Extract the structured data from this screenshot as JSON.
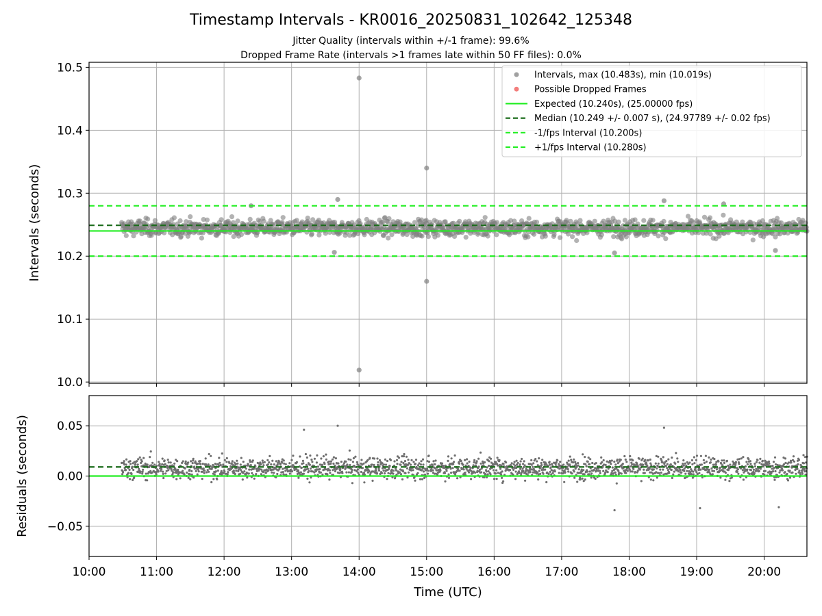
{
  "figure": {
    "title": "Timestamp Intervals - KR0016_20250831_102642_125348",
    "subtitle_1": "Jitter Quality (intervals within +/-1 frame): 99.6%",
    "subtitle_2": "Dropped Frame Rate (intervals >1 frames late within 50 FF files): 0.0%"
  },
  "chart_data": [
    {
      "type": "scatter",
      "panel": "top",
      "ylabel": "Intervals (seconds)",
      "xlabel": "",
      "xlim": [
        "10:00",
        "20:38"
      ],
      "ylim": [
        9.998,
        10.508
      ],
      "xticks": [
        "10:00",
        "11:00",
        "12:00",
        "13:00",
        "14:00",
        "15:00",
        "16:00",
        "17:00",
        "18:00",
        "19:00",
        "20:00"
      ],
      "yticks": [
        "10.0",
        "10.1",
        "10.2",
        "10.3",
        "10.4",
        "10.5"
      ],
      "grid": true,
      "legend_position": "top-right",
      "series": [
        {
          "name": "Intervals, max (10.483s), min (10.019s)",
          "kind": "points",
          "color": "#808080",
          "x_range": [
            "10:29",
            "20:38"
          ],
          "center": 10.245,
          "spread": 0.02,
          "outliers": [
            {
              "x": "14:00",
              "y": 10.483
            },
            {
              "x": "14:00",
              "y": 10.019
            },
            {
              "x": "15:00",
              "y": 10.34
            },
            {
              "x": "15:00",
              "y": 10.16
            },
            {
              "x": "13:41",
              "y": 10.29
            },
            {
              "x": "12:24",
              "y": 10.28
            },
            {
              "x": "18:31",
              "y": 10.288
            },
            {
              "x": "19:24",
              "y": 10.283
            },
            {
              "x": "17:47",
              "y": 10.205
            },
            {
              "x": "13:38",
              "y": 10.206
            },
            {
              "x": "20:10",
              "y": 10.209
            }
          ]
        },
        {
          "name": "Possible Dropped Frames",
          "kind": "points",
          "color": "#ef5350",
          "values": []
        },
        {
          "name": "Expected (10.240s), (25.00000 fps)",
          "kind": "hline",
          "y": 10.24,
          "color": "#22ee22",
          "style": "solid"
        },
        {
          "name": "Median (10.249 +/- 0.007 s), (24.97789 +/- 0.02 fps)",
          "kind": "hline",
          "y": 10.249,
          "color": "#1a6b1a",
          "style": "dashed"
        },
        {
          "name": "-1/fps Interval (10.200s)",
          "kind": "hline",
          "y": 10.2,
          "color": "#22ee22",
          "style": "dashed"
        },
        {
          "name": "+1/fps Interval (10.280s)",
          "kind": "hline",
          "y": 10.28,
          "color": "#22ee22",
          "style": "dashed"
        }
      ]
    },
    {
      "type": "scatter",
      "panel": "bottom",
      "xlabel": "Time (UTC)",
      "ylabel": "Residuals (seconds)",
      "xlim": [
        "10:00",
        "20:38"
      ],
      "ylim": [
        -0.08,
        0.08
      ],
      "xticks": [
        "10:00",
        "11:00",
        "12:00",
        "13:00",
        "14:00",
        "15:00",
        "16:00",
        "17:00",
        "18:00",
        "19:00",
        "20:00"
      ],
      "yticks": [
        "0.05",
        "0.00",
        "−0.05"
      ],
      "ytick_values": [
        0.05,
        0.0,
        -0.05
      ],
      "grid": true,
      "series": [
        {
          "name": "residuals",
          "kind": "points",
          "color": "#6f6f6f",
          "x_range": [
            "10:29",
            "20:38"
          ],
          "center": 0.008,
          "spread": 0.012,
          "extremes": [
            {
              "x": "13:41",
              "y": 0.05
            },
            {
              "x": "18:31",
              "y": 0.048
            },
            {
              "x": "13:11",
              "y": 0.046
            },
            {
              "x": "20:13",
              "y": -0.031
            },
            {
              "x": "17:47",
              "y": -0.034
            },
            {
              "x": "19:03",
              "y": -0.032
            }
          ]
        },
        {
          "name": "zero",
          "kind": "hline",
          "y": 0.0,
          "color": "#22ee22",
          "style": "solid"
        },
        {
          "name": "median",
          "kind": "hline",
          "y": 0.009,
          "color": "#1a6b1a",
          "style": "dashed"
        }
      ]
    }
  ]
}
